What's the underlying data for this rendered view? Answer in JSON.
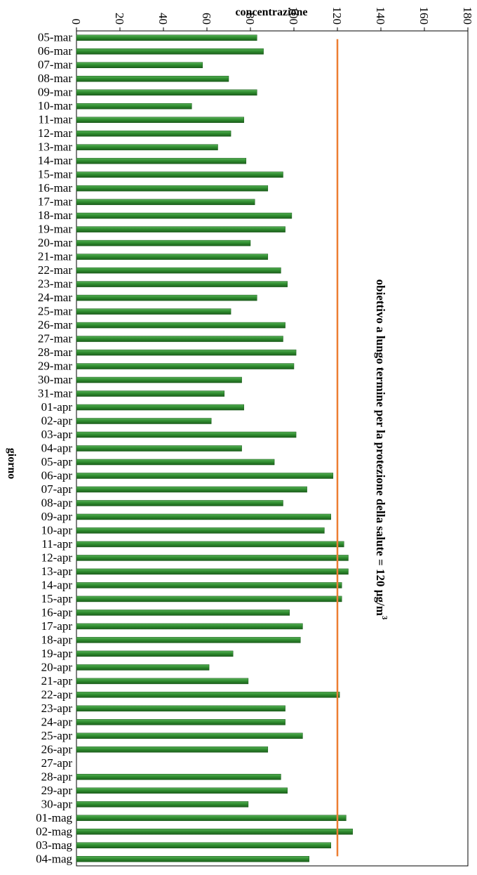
{
  "chart_data": {
    "type": "bar",
    "orientation": "horizontal",
    "title": "",
    "xlabel": "concentrazione",
    "ylabel": "giorno",
    "xlim": [
      0,
      180
    ],
    "x_ticks": [
      "0",
      "20",
      "40",
      "60",
      "80",
      "100",
      "120",
      "140",
      "160",
      "180"
    ],
    "grid": false,
    "categories": [
      "05-mar",
      "06-mar",
      "07-mar",
      "08-mar",
      "09-mar",
      "10-mar",
      "11-mar",
      "12-mar",
      "13-mar",
      "14-mar",
      "15-mar",
      "16-mar",
      "17-mar",
      "18-mar",
      "19-mar",
      "20-mar",
      "21-mar",
      "22-mar",
      "23-mar",
      "24-mar",
      "25-mar",
      "26-mar",
      "27-mar",
      "28-mar",
      "29-mar",
      "30-mar",
      "31-mar",
      "01-apr",
      "02-apr",
      "03-apr",
      "04-apr",
      "05-apr",
      "06-apr",
      "07-apr",
      "08-apr",
      "09-apr",
      "10-apr",
      "11-apr",
      "12-apr",
      "13-apr",
      "14-apr",
      "15-apr",
      "16-apr",
      "17-apr",
      "18-apr",
      "19-apr",
      "20-apr",
      "21-apr",
      "22-apr",
      "23-apr",
      "24-apr",
      "25-apr",
      "26-apr",
      "27-apr",
      "28-apr",
      "29-apr",
      "30-apr",
      "01-mag",
      "02-mag",
      "03-mag",
      "04-mag"
    ],
    "values": [
      83,
      86,
      58,
      70,
      83,
      53,
      77,
      71,
      65,
      78,
      95,
      88,
      82,
      99,
      96,
      80,
      88,
      94,
      97,
      83,
      71,
      96,
      95,
      101,
      100,
      76,
      68,
      77,
      62,
      101,
      76,
      91,
      118,
      106,
      95,
      117,
      114,
      123,
      125,
      125,
      122,
      122,
      98,
      104,
      103,
      72,
      61,
      79,
      121,
      96,
      96,
      104,
      88,
      null,
      94,
      97,
      79,
      124,
      127,
      117,
      107
    ],
    "bar_color": "#2e8b2e",
    "reference_line": {
      "value": 120,
      "color": "#ed7d31",
      "label": "obiettivo a lungo termine  per la protezione della salute = 120 µg/m",
      "label_sup": "3"
    }
  }
}
